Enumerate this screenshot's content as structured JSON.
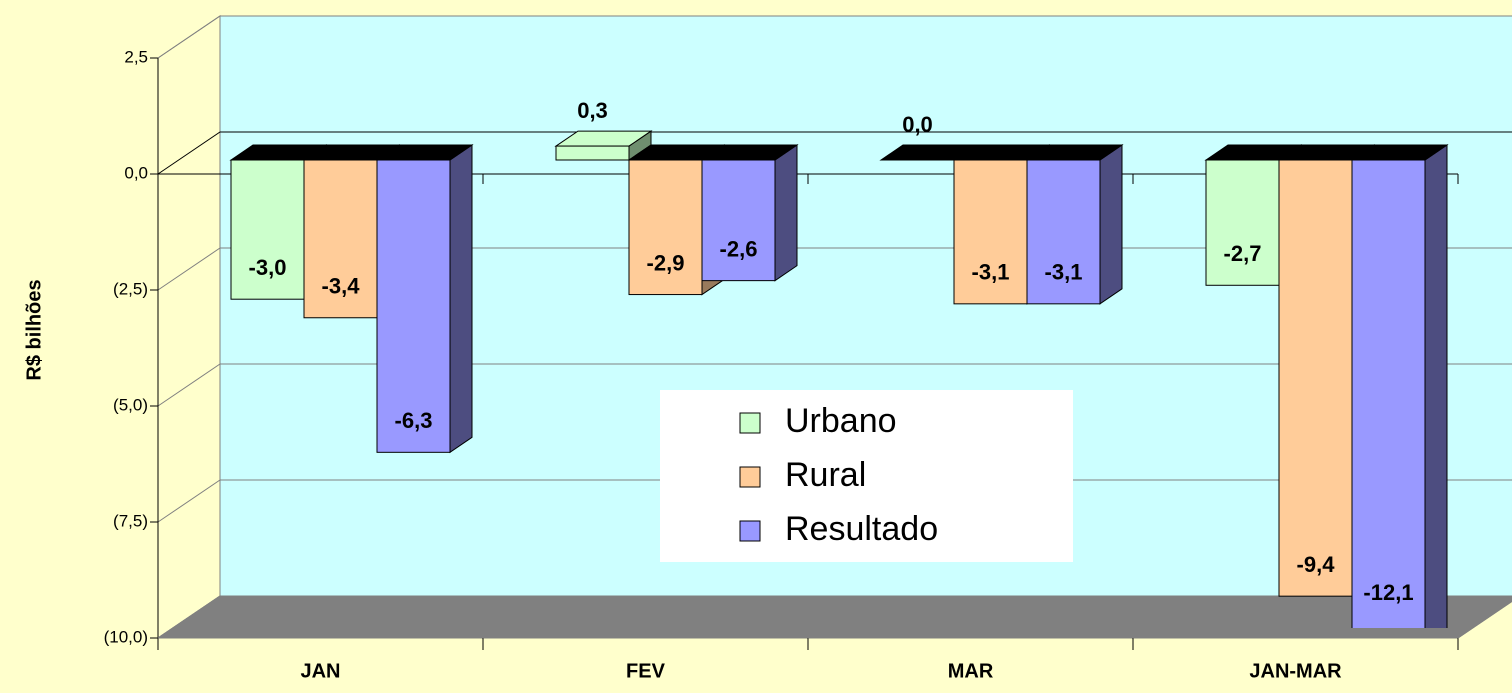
{
  "chart_data": {
    "type": "bar3d",
    "y_label": "R$ bilhões",
    "categories": [
      "JAN",
      "FEV",
      "MAR",
      "JAN-MAR"
    ],
    "series": [
      {
        "name": "Urbano",
        "color": "#ccffcc",
        "side": "#6f8f6f",
        "values": [
          -3.0,
          0.3,
          0.0,
          -2.7
        ],
        "value_labels": [
          "-3,0",
          "0,3",
          "0,0",
          "-2,7"
        ]
      },
      {
        "name": "Rural",
        "color": "#ffcc99",
        "side": "#997a5c",
        "values": [
          -3.4,
          -2.9,
          -3.1,
          -9.4
        ],
        "value_labels": [
          "-3,4",
          "-2,9",
          "-3,1",
          "-9,4"
        ]
      },
      {
        "name": "Resultado",
        "color": "#9999ff",
        "side": "#4d4d80",
        "values": [
          -6.3,
          -2.6,
          -3.1,
          -12.1
        ],
        "value_labels": [
          "-6,3",
          "-2,6",
          "-3,1",
          "-12,1"
        ]
      }
    ],
    "ylim": [
      -10,
      2.5
    ],
    "yticks": [
      {
        "value": 2.5,
        "label": "2,5"
      },
      {
        "value": 0,
        "label": "0,0"
      },
      {
        "value": -2.5,
        "label": "(2,5)"
      },
      {
        "value": -5,
        "label": "(5,0)"
      },
      {
        "value": -7.5,
        "label": "(7,5)"
      },
      {
        "value": -10,
        "label": "(10,0)"
      }
    ],
    "grid": true,
    "wall_color": "#ccffff",
    "floor_color": "#808080"
  }
}
